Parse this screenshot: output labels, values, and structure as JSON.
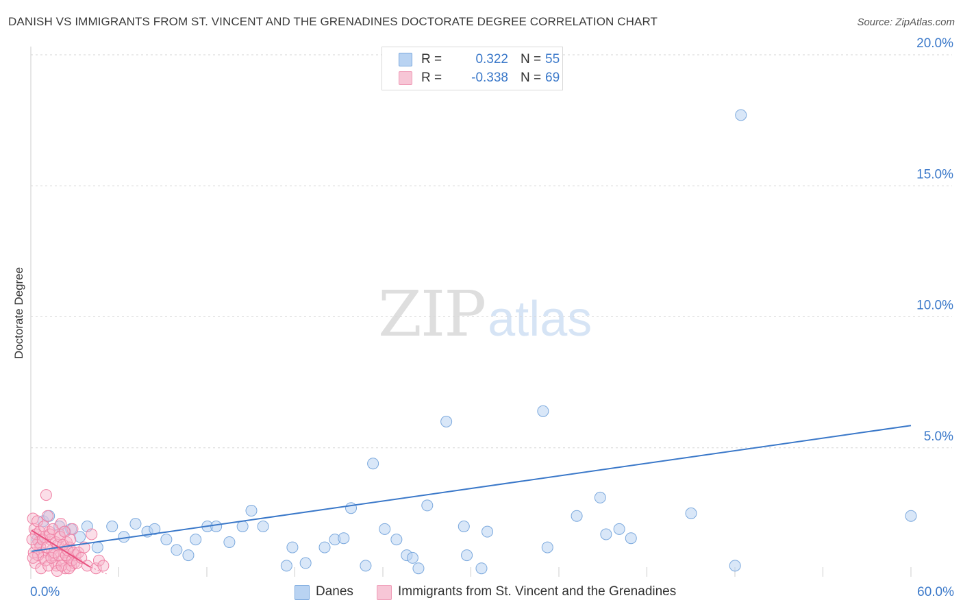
{
  "title": "DANISH VS IMMIGRANTS FROM ST. VINCENT AND THE GRENADINES DOCTORATE DEGREE CORRELATION CHART",
  "source": "Source: ZipAtlas.com",
  "watermark": {
    "zip": "ZIP",
    "atlas": "atlas"
  },
  "colors": {
    "blue": "#3a78c9",
    "blue_fill": "#b9d3f2",
    "blue_stroke": "#7aa8dd",
    "pink": "#e8507f",
    "pink_fill": "#f7b6cb",
    "pink_stroke": "#ef7fa3",
    "grid": "#d6d6d6",
    "axis_text": "#3a78c9"
  },
  "legend": {
    "rows": [
      {
        "series": "Danes",
        "r_label": "R =",
        "r_value": "0.322",
        "n_label": "N =",
        "n_value": "55"
      },
      {
        "series": "Immigrants from St. Vincent and the Grenadines",
        "r_label": "R =",
        "r_value": "-0.338",
        "n_label": "N =",
        "n_value": "69"
      }
    ]
  },
  "bottom_legend": [
    "Danes",
    "Immigrants from St. Vincent and the Grenadines"
  ],
  "chart_data": {
    "type": "scatter",
    "title": "DANISH VS IMMIGRANTS FROM ST. VINCENT AND THE GRENADINES DOCTORATE DEGREE CORRELATION CHART",
    "xlabel": "",
    "ylabel": "Doctorate Degree",
    "xlim": [
      0,
      60
    ],
    "ylim": [
      0,
      20
    ],
    "x_tick_labels": {
      "min": "0.0%",
      "max": "60.0%"
    },
    "y_ticks": [
      5,
      10,
      15,
      20
    ],
    "y_tick_labels": [
      "5.0%",
      "10.0%",
      "15.0%",
      "20.0%"
    ],
    "grid": true,
    "legend_position": "top-center",
    "series": [
      {
        "name": "Danes",
        "color": "#3a78c9",
        "trendline": {
          "x": [
            0,
            60
          ],
          "y": [
            1.05,
            5.85
          ]
        },
        "points": [
          [
            0.4,
            1.5
          ],
          [
            0.8,
            2.2
          ],
          [
            1.2,
            2.4
          ],
          [
            1.9,
            2.0
          ],
          [
            2.3,
            1.8
          ],
          [
            2.7,
            1.9
          ],
          [
            3.3,
            1.6
          ],
          [
            3.8,
            2.0
          ],
          [
            4.5,
            1.2
          ],
          [
            5.5,
            2.0
          ],
          [
            6.3,
            1.6
          ],
          [
            7.1,
            2.1
          ],
          [
            7.9,
            1.8
          ],
          [
            8.4,
            1.9
          ],
          [
            9.2,
            1.5
          ],
          [
            9.9,
            1.1
          ],
          [
            10.7,
            0.9
          ],
          [
            11.2,
            1.5
          ],
          [
            12.0,
            2.0
          ],
          [
            12.6,
            2.0
          ],
          [
            13.5,
            1.4
          ],
          [
            14.4,
            2.0
          ],
          [
            15.0,
            2.6
          ],
          [
            15.8,
            2.0
          ],
          [
            17.4,
            0.5
          ],
          [
            17.8,
            1.2
          ],
          [
            18.7,
            0.6
          ],
          [
            20.0,
            1.2
          ],
          [
            20.7,
            1.5
          ],
          [
            21.3,
            1.55
          ],
          [
            21.8,
            2.7
          ],
          [
            22.8,
            0.5
          ],
          [
            23.3,
            4.4
          ],
          [
            24.1,
            1.9
          ],
          [
            24.9,
            1.5
          ],
          [
            25.6,
            0.9
          ],
          [
            26.0,
            0.8
          ],
          [
            26.4,
            0.4
          ],
          [
            27.0,
            2.8
          ],
          [
            28.3,
            6.0
          ],
          [
            29.5,
            2.0
          ],
          [
            29.7,
            0.9
          ],
          [
            30.7,
            0.4
          ],
          [
            31.1,
            1.8
          ],
          [
            34.9,
            6.4
          ],
          [
            38.8,
            3.1
          ],
          [
            35.2,
            1.2
          ],
          [
            37.2,
            2.4
          ],
          [
            39.2,
            1.7
          ],
          [
            40.1,
            1.9
          ],
          [
            40.9,
            1.55
          ],
          [
            45.0,
            2.5
          ],
          [
            48.0,
            0.5
          ],
          [
            48.4,
            17.7
          ],
          [
            60.0,
            2.4
          ]
        ]
      },
      {
        "name": "Immigrants from St. Vincent and the Grenadines",
        "color": "#e8507f",
        "trendline": {
          "x": [
            0,
            4.0
          ],
          "y": [
            1.85,
            0.45
          ]
        },
        "points": [
          [
            0.1,
            2.3
          ],
          [
            0.2,
            1.9
          ],
          [
            0.3,
            1.7
          ],
          [
            0.4,
            2.2
          ],
          [
            0.5,
            1.4
          ],
          [
            0.6,
            1.2
          ],
          [
            0.7,
            1.0
          ],
          [
            0.8,
            0.8
          ],
          [
            0.9,
            1.6
          ],
          [
            1.0,
            3.2
          ],
          [
            1.1,
            2.4
          ],
          [
            1.2,
            1.8
          ],
          [
            1.3,
            1.5
          ],
          [
            1.4,
            1.1
          ],
          [
            1.5,
            0.9
          ],
          [
            1.6,
            0.6
          ],
          [
            1.7,
            0.5
          ],
          [
            1.8,
            1.3
          ],
          [
            1.9,
            1.7
          ],
          [
            2.0,
            2.1
          ],
          [
            2.1,
            0.7
          ],
          [
            2.2,
            1.0
          ],
          [
            2.3,
            0.4
          ],
          [
            2.4,
            1.4
          ],
          [
            2.5,
            0.8
          ],
          [
            2.6,
            1.2
          ],
          [
            2.7,
            0.5
          ],
          [
            2.8,
            1.9
          ],
          [
            2.9,
            0.6
          ],
          [
            3.0,
            0.9
          ],
          [
            0.15,
            1.0
          ],
          [
            0.25,
            0.6
          ],
          [
            0.35,
            1.3
          ],
          [
            0.45,
            0.9
          ],
          [
            0.55,
            1.8
          ],
          [
            0.65,
            0.4
          ],
          [
            0.75,
            1.5
          ],
          [
            0.85,
            2.0
          ],
          [
            0.95,
            0.7
          ],
          [
            1.05,
            1.2
          ],
          [
            1.15,
            0.5
          ],
          [
            1.25,
            1.7
          ],
          [
            1.35,
            0.8
          ],
          [
            1.45,
            1.9
          ],
          [
            1.55,
            1.0
          ],
          [
            1.65,
            1.4
          ],
          [
            1.75,
            0.3
          ],
          [
            1.85,
            0.9
          ],
          [
            1.95,
            1.6
          ],
          [
            2.05,
            0.5
          ],
          [
            2.15,
            1.3
          ],
          [
            2.25,
            1.8
          ],
          [
            2.35,
            0.9
          ],
          [
            2.45,
            1.1
          ],
          [
            2.55,
            0.4
          ],
          [
            2.65,
            1.5
          ],
          [
            2.75,
            0.7
          ],
          [
            2.85,
            1.0
          ],
          [
            3.1,
            0.6
          ],
          [
            3.2,
            1.0
          ],
          [
            3.4,
            0.8
          ],
          [
            3.6,
            1.2
          ],
          [
            3.8,
            0.5
          ],
          [
            4.1,
            1.7
          ],
          [
            4.4,
            0.4
          ],
          [
            4.6,
            0.7
          ],
          [
            4.9,
            0.5
          ],
          [
            0.05,
            1.5
          ],
          [
            0.1,
            0.8
          ]
        ]
      }
    ]
  }
}
